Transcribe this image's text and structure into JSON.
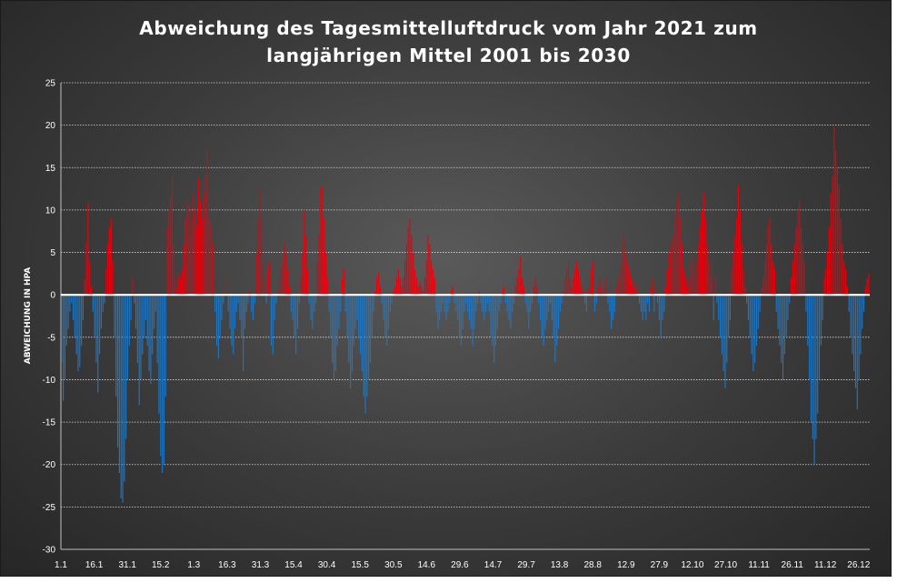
{
  "chart_data": {
    "type": "bar",
    "title_lines": [
      "Abweichung des Tagesmittelluftdruck vom Jahr 2021 zum",
      "langjährigen Mittel 2001 bis 2030"
    ],
    "ylabel": "ABWEICHUNG IN HPA",
    "xlabel": "",
    "ylim": [
      -30,
      25
    ],
    "yticks": [
      25,
      20,
      15,
      10,
      5,
      0,
      -5,
      -10,
      -15,
      -20,
      -25,
      -30
    ],
    "xtick_labels": [
      "1.1",
      "16.1",
      "31.1",
      "15.2",
      "1.3",
      "16.3",
      "31.3",
      "15.4",
      "30.4",
      "15.5",
      "30.5",
      "14.6",
      "29.6",
      "14.7",
      "29.7",
      "13.8",
      "28.8",
      "12.9",
      "27.9",
      "12.10",
      "27.10",
      "11.11",
      "26.11",
      "11.12",
      "26.12"
    ],
    "grid": true,
    "legend": "none",
    "colors": {
      "positive": "#e8000b",
      "negative": "#1f77c4",
      "zero_line": "#ffffff",
      "grid": "#d9d9d9"
    },
    "values": [
      -8,
      -12.5,
      -10,
      -6,
      -4,
      -2,
      -1,
      -3,
      -5,
      -7,
      -9,
      -8.5,
      -6,
      -3,
      2,
      6,
      10.8,
      4,
      1,
      -2,
      -5,
      -8,
      -11.5,
      -7,
      -4,
      -2,
      -1,
      3,
      6,
      8,
      9,
      4,
      -5,
      -12,
      -18,
      -21,
      -24,
      -24.5,
      -22,
      -17,
      -10,
      -6,
      -3,
      2,
      -1,
      -4,
      -8,
      -13,
      -10,
      -7,
      -5,
      -3,
      -6,
      -9,
      -10.5,
      -7,
      -4,
      -2,
      -8,
      -14,
      -19,
      -21,
      -20,
      -12,
      8,
      10,
      11.7,
      14,
      6,
      2,
      1,
      2.5,
      2,
      3,
      6,
      9,
      11,
      10.5,
      7,
      9,
      12,
      10,
      8,
      13.7,
      11,
      9,
      12,
      14,
      17,
      12,
      9,
      8,
      6,
      -2,
      -6,
      -7.5,
      -5,
      -3,
      -1,
      1,
      2,
      -2,
      -4,
      -6,
      -7,
      -4,
      -2,
      -1,
      -3,
      -5,
      -9,
      -4,
      -2,
      -1,
      0.5,
      -2,
      -3,
      -1,
      5,
      9,
      12.5,
      8,
      4,
      2,
      -1,
      3,
      4,
      -6,
      -7,
      -3,
      -1,
      0.5,
      2,
      3,
      4,
      6,
      5,
      3,
      1,
      -2,
      -3,
      -5,
      -7,
      -4,
      -1,
      2,
      5,
      10,
      7,
      3,
      -1,
      -3,
      -4,
      -2,
      -1,
      4,
      7,
      12.5,
      12.8,
      9,
      5,
      2,
      -2,
      -5,
      -8,
      -10,
      -9,
      -6,
      -4,
      -2,
      2,
      3,
      -2,
      -5,
      -8,
      -11,
      -9,
      -6,
      -4,
      -3,
      -5,
      -7,
      -9,
      -12,
      -14,
      -12,
      -10,
      -8,
      -5,
      -2,
      0.5,
      2,
      2.6,
      1,
      -1,
      -3,
      -5,
      -6,
      -4,
      -2,
      -1,
      0.5,
      1,
      2,
      3,
      2,
      1,
      2,
      4,
      6,
      8,
      9,
      7,
      5,
      3,
      2,
      1,
      1.5,
      1,
      0.5,
      2,
      4,
      7,
      6,
      4,
      3,
      2,
      -2,
      -4,
      -3,
      -2,
      -1,
      -2,
      -3,
      -2,
      -1,
      0.5,
      1,
      -1,
      -2,
      -3,
      -5,
      -6,
      -4,
      -2,
      -1,
      -2,
      -3,
      -4,
      -6,
      -4,
      -2,
      -1,
      0.5,
      -1,
      -2,
      -3,
      -2,
      -1,
      -2,
      -5,
      -6,
      -8,
      -6,
      -4,
      -2,
      -1,
      0.5,
      1,
      -1,
      -2,
      -3,
      -4,
      -2,
      -1,
      1,
      2,
      3,
      4.5,
      2,
      1,
      -1,
      -2,
      -4,
      -2,
      -1,
      1,
      2,
      1,
      -1,
      -3,
      -5,
      -6,
      -4,
      -3,
      -2,
      -1,
      -3,
      -5,
      -8,
      -6,
      -4,
      -2,
      -1,
      0.5,
      2,
      3,
      4,
      2,
      1,
      2,
      3,
      4,
      3,
      2,
      1,
      0.5,
      -1,
      -2,
      0.5,
      1,
      3,
      4,
      -2,
      -1,
      1,
      2,
      1,
      0.5,
      1,
      2,
      -1,
      -2,
      -4,
      -3,
      -2,
      1,
      2,
      3,
      4,
      6,
      7,
      5,
      4,
      3,
      2,
      1,
      1.5,
      1,
      0.5,
      -1,
      -2,
      -3,
      -2,
      -3,
      -1,
      -2,
      1,
      2,
      -2,
      1,
      -1,
      -3,
      -5,
      -3,
      -2,
      1,
      3,
      5,
      6,
      7,
      9,
      10,
      11,
      12,
      9,
      6,
      3,
      2,
      1,
      2,
      4,
      5,
      3,
      2,
      4,
      6,
      8,
      10,
      12,
      9,
      6,
      4,
      2,
      4,
      -3,
      2,
      -1,
      -3,
      -5,
      -7,
      -9,
      -11,
      -8,
      -5,
      -3,
      3,
      5,
      7,
      9,
      13,
      10,
      6,
      3,
      1,
      -1,
      -3,
      -5,
      -7,
      -9,
      -8,
      -6,
      -4,
      -2,
      1,
      2,
      4,
      6,
      8,
      9,
      6,
      4,
      3,
      -2,
      -4,
      -6,
      -8,
      -10,
      -7,
      -5,
      -3,
      -1,
      2,
      4,
      6,
      8,
      10,
      11,
      8,
      6,
      4,
      -2,
      -6,
      -10,
      -15,
      -17,
      -20,
      -17,
      -14,
      -10,
      -6,
      -3,
      2,
      3,
      5,
      8,
      12,
      14,
      19.8,
      17,
      15,
      13,
      9,
      6,
      4,
      3,
      1,
      -2,
      -5,
      -7,
      -9,
      -11,
      -13.5,
      -10,
      -7,
      -4,
      -2,
      1,
      2,
      2.5
    ]
  }
}
